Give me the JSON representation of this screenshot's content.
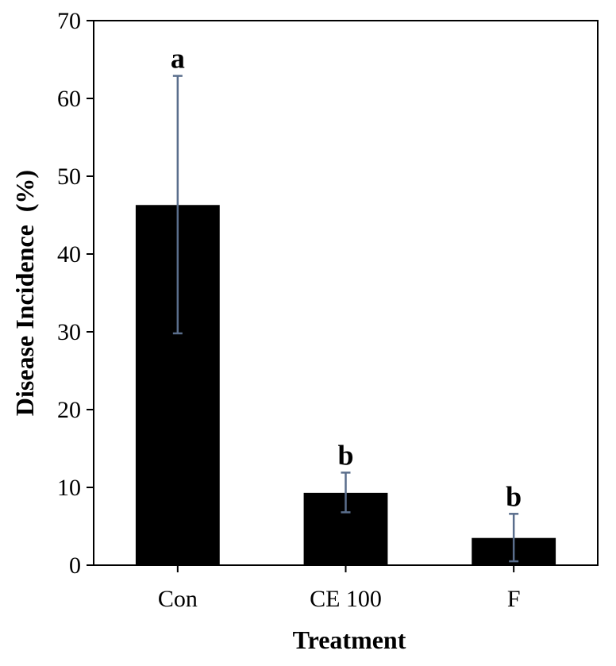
{
  "chart_data": {
    "type": "bar",
    "title": "",
    "xlabel": "Treatment",
    "ylabel": "Disease Incidence  (%)",
    "ylim": [
      0,
      70
    ],
    "yticks": [
      0,
      10,
      20,
      30,
      40,
      50,
      60,
      70
    ],
    "ytick_labels": [
      "0",
      "10",
      "20",
      "30",
      "40",
      "50",
      "60",
      "70"
    ],
    "categories": [
      "Con",
      "CE 100",
      "F"
    ],
    "values": [
      46.3,
      9.3,
      3.5
    ],
    "error_low": [
      29.8,
      6.8,
      0.5
    ],
    "error_high": [
      62.9,
      11.9,
      6.6
    ],
    "significance_labels": [
      "a",
      "b",
      "b"
    ],
    "grid": false,
    "legend": "none",
    "colors": {
      "bar": "#000000",
      "error_bar": "#5a6e8c",
      "axis": "#000000"
    }
  }
}
